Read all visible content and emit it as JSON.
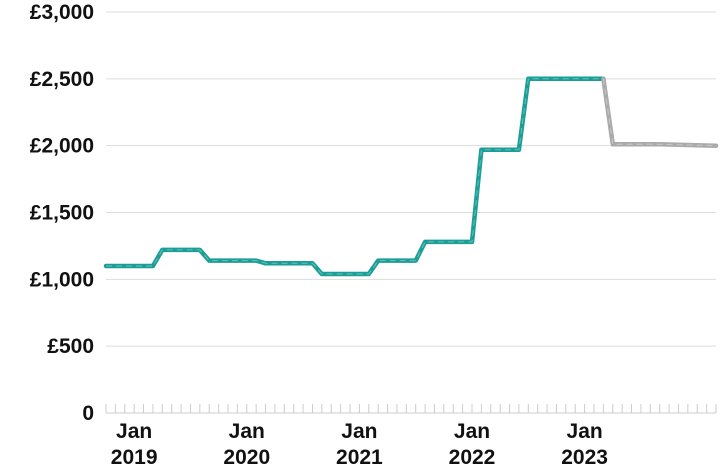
{
  "chart_data": {
    "type": "line",
    "title": "",
    "xlabel": "",
    "ylabel": "",
    "y_ticks": [
      0,
      500,
      1000,
      1500,
      2000,
      2500,
      3000
    ],
    "y_tick_labels": [
      "0",
      "£500",
      "£1,000",
      "£1,500",
      "£2,000",
      "£2,500",
      "£3,000"
    ],
    "ylim": [
      0,
      3000
    ],
    "x_start": "2018-10",
    "x_end": "2024-03",
    "x_ticks": [
      {
        "month": "2019-01",
        "line1": "Jan",
        "line2": "2019"
      },
      {
        "month": "2020-01",
        "line1": "Jan",
        "line2": "2020"
      },
      {
        "month": "2021-01",
        "line1": "Jan",
        "line2": "2021"
      },
      {
        "month": "2022-01",
        "line1": "Jan",
        "line2": "2022"
      },
      {
        "month": "2023-01",
        "line1": "Jan",
        "line2": "2023"
      }
    ],
    "grid": true,
    "legend": "none",
    "series": [
      {
        "color": "#1a9e96",
        "points": [
          {
            "x": "2018-10",
            "y": 1100
          },
          {
            "x": "2019-03",
            "y": 1100
          },
          {
            "x": "2019-04",
            "y": 1220
          },
          {
            "x": "2019-08",
            "y": 1220
          },
          {
            "x": "2019-09",
            "y": 1140
          },
          {
            "x": "2020-02",
            "y": 1140
          },
          {
            "x": "2020-03",
            "y": 1120
          },
          {
            "x": "2020-08",
            "y": 1120
          },
          {
            "x": "2020-09",
            "y": 1040
          },
          {
            "x": "2021-02",
            "y": 1040
          },
          {
            "x": "2021-03",
            "y": 1140
          },
          {
            "x": "2021-07",
            "y": 1140
          },
          {
            "x": "2021-08",
            "y": 1280
          },
          {
            "x": "2022-01",
            "y": 1280
          },
          {
            "x": "2022-02",
            "y": 1970
          },
          {
            "x": "2022-06",
            "y": 1970
          },
          {
            "x": "2022-07",
            "y": 2500
          },
          {
            "x": "2023-03",
            "y": 2500
          }
        ]
      },
      {
        "color": "#aaaaaa",
        "points": [
          {
            "x": "2023-03",
            "y": 2500
          },
          {
            "x": "2023-04",
            "y": 2010
          },
          {
            "x": "2023-09",
            "y": 2010
          },
          {
            "x": "2024-03",
            "y": 2000
          }
        ]
      }
    ]
  }
}
